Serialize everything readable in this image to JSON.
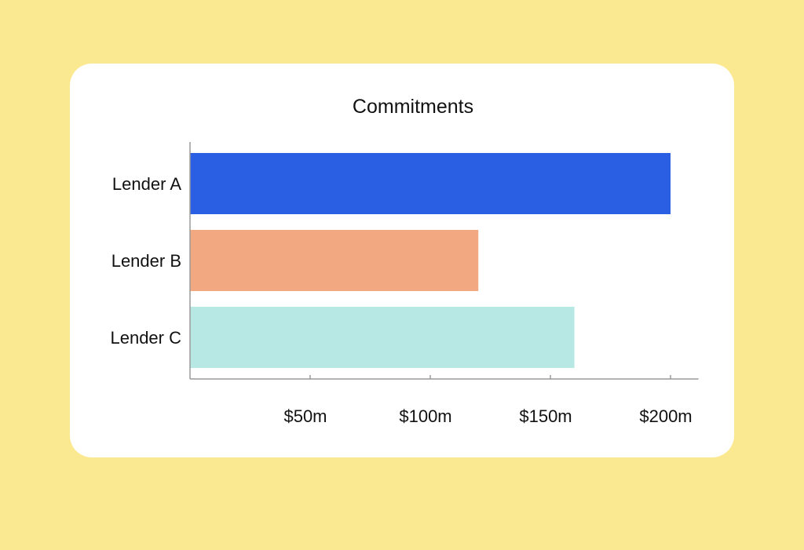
{
  "chart_data": {
    "type": "bar",
    "orientation": "horizontal",
    "title": "Commitments",
    "xlabel": "",
    "ylabel": "",
    "categories": [
      "Lender A",
      "Lender B",
      "Lender C"
    ],
    "values": [
      200,
      120,
      160
    ],
    "colors": [
      "#2a5fe3",
      "#f2a880",
      "#b8e8e4"
    ],
    "xlim": [
      0,
      210
    ],
    "x_ticks": [
      50,
      100,
      150,
      200
    ],
    "x_tick_labels": [
      "$50m",
      "$100m",
      "$150m",
      "$200m"
    ],
    "unit": "$m",
    "grid": false,
    "legend": "none"
  },
  "colors": {
    "background": "#fbe991",
    "card": "#ffffff",
    "axis": "#9a9a9a",
    "text": "#111111"
  }
}
